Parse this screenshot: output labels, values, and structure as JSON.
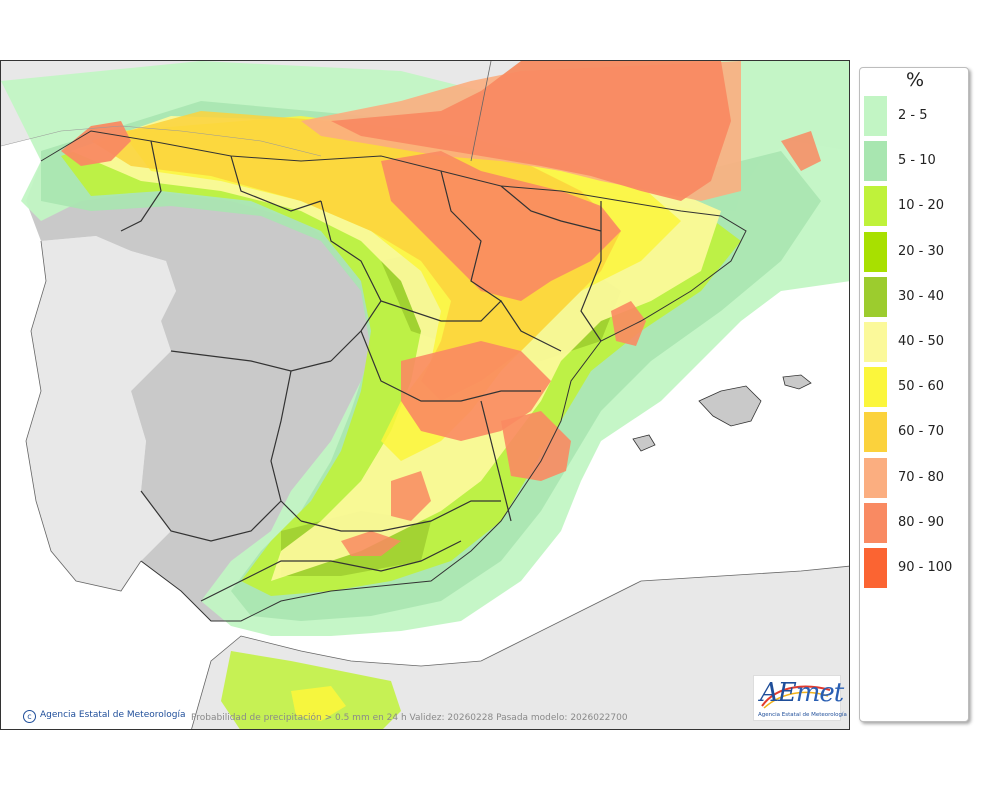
{
  "map": {
    "attribution": "Agencia Estatal de Meteorología",
    "caption": "Probabilidad de precipitación > 0.5 mm en 24 h Validez: 20260228 Pasada modelo: 2026022700",
    "logo": {
      "text_a": "AE",
      "text_b": "met",
      "subtitle": "Agencia Estatal de Meteorología"
    }
  },
  "legend": {
    "title": "%",
    "items": [
      {
        "label": "2 - 5",
        "color": "#c2f5c4"
      },
      {
        "label": "5 - 10",
        "color": "#a8e6b0"
      },
      {
        "label": "10 - 20",
        "color": "#bff23a"
      },
      {
        "label": "20 - 30",
        "color": "#a8e000"
      },
      {
        "label": "30 - 40",
        "color": "#9ccc2e"
      },
      {
        "label": "40 - 50",
        "color": "#fbf99a"
      },
      {
        "label": "50 - 60",
        "color": "#fbf63c"
      },
      {
        "label": "60 - 70",
        "color": "#fbd23c"
      },
      {
        "label": "70 - 80",
        "color": "#fbae80"
      },
      {
        "label": "80 - 90",
        "color": "#f98a62"
      },
      {
        "label": "90 - 100",
        "color": "#fb6432"
      }
    ]
  }
}
